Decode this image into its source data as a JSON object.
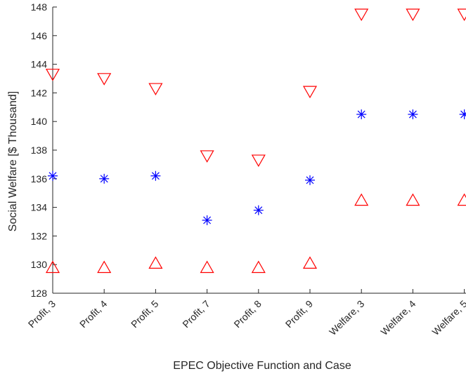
{
  "chart_data": {
    "type": "scatter",
    "xlabel": "EPEC Objective Function and Case",
    "ylabel": "Social Welfare [$ Thousand]",
    "ylim": [
      128,
      148
    ],
    "yticks": [
      128,
      130,
      132,
      134,
      136,
      138,
      140,
      142,
      144,
      146,
      148
    ],
    "categories": [
      "Profit, 3",
      "Profit, 4",
      "Profit, 5",
      "Profit, 7",
      "Profit, 8",
      "Profit, 9",
      "Welfare, 3",
      "Welfare, 4",
      "Welfare, 5"
    ],
    "grid": false,
    "series": [
      {
        "marker": "triangle-down",
        "color": "#ff0000",
        "values": [
          143.3,
          143.0,
          142.3,
          137.6,
          137.3,
          142.1,
          147.5,
          147.5,
          147.5
        ]
      },
      {
        "marker": "asterisk",
        "color": "#0000ff",
        "values": [
          136.2,
          136.0,
          136.2,
          133.1,
          133.8,
          135.9,
          140.5,
          140.5,
          140.5
        ]
      },
      {
        "marker": "triangle-up",
        "color": "#ff0000",
        "values": [
          129.8,
          129.8,
          130.1,
          129.8,
          129.8,
          130.1,
          134.5,
          134.5,
          134.5
        ]
      }
    ]
  }
}
